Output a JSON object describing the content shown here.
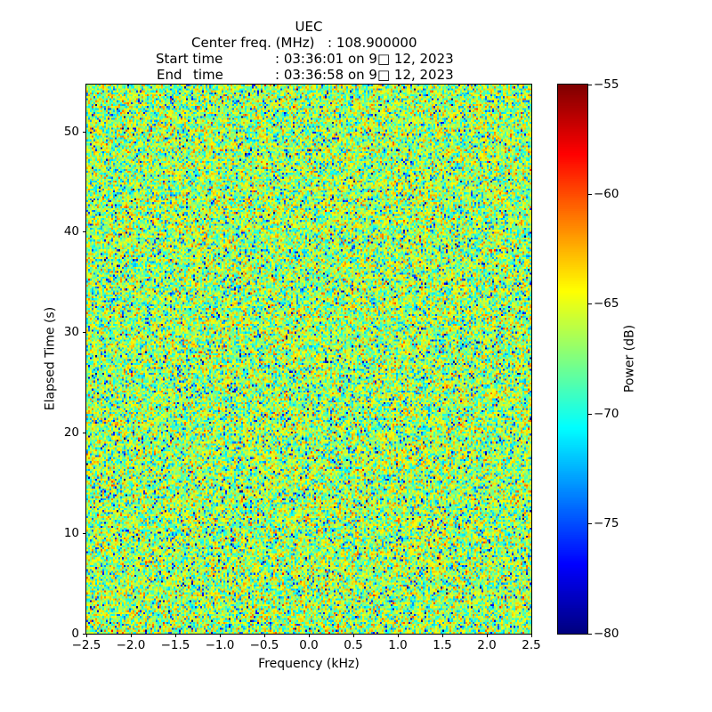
{
  "chart_data": {
    "type": "heatmap",
    "title": "UEC",
    "header": {
      "center_freq_label": "Center freq. (MHz)",
      "center_freq_value": ": 108.900000",
      "start_label": "Start time",
      "start_value": ": 03:36:01 on 9□ 12, 2023",
      "end_label_word1": "End",
      "end_label_word2": "time",
      "end_value": ": 03:36:58 on 9□ 12, 2023"
    },
    "xlabel": "Frequency (kHz)",
    "ylabel": "Elapsed Time (s)",
    "xlim": [
      -2.5,
      2.5
    ],
    "ylim": [
      0,
      54.7
    ],
    "xticks": [
      -2.5,
      -2.0,
      -1.5,
      -1.0,
      -0.5,
      0.0,
      0.5,
      1.0,
      1.5,
      2.0,
      2.5
    ],
    "xtick_decimals": 1,
    "yticks": [
      0,
      10,
      20,
      30,
      40,
      50
    ],
    "grid": false,
    "colormap": "jet",
    "colorbar": {
      "label": "Power (dB)",
      "min": -80,
      "max": -55,
      "ticks": [
        -55,
        -60,
        -65,
        -70,
        -75,
        -80
      ],
      "position": "right"
    },
    "noise_model": {
      "description": "featureless random RF noise floor spectrogram, no visible signal",
      "power_db_formula": "-66 + 10*log10(mean of 2 unit exponential draws)",
      "clip_db": [
        -80,
        -55
      ],
      "cols": 250,
      "rows": 280,
      "seed": 20230912
    }
  }
}
